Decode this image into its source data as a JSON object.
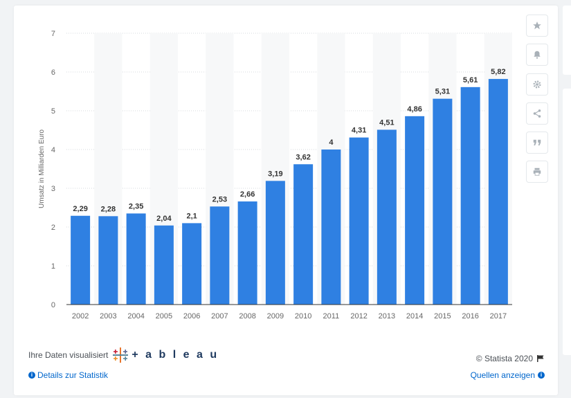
{
  "chart_data": {
    "type": "bar",
    "categories": [
      "2002",
      "2003",
      "2004",
      "2005",
      "2006",
      "2007",
      "2008",
      "2009",
      "2010",
      "2011",
      "2012",
      "2013",
      "2014",
      "2015",
      "2016",
      "2017"
    ],
    "values": [
      2.29,
      2.28,
      2.35,
      2.04,
      2.1,
      2.53,
      2.66,
      3.19,
      3.62,
      4,
      4.31,
      4.51,
      4.86,
      5.31,
      5.61,
      5.82
    ],
    "value_labels": [
      "2,29",
      "2,28",
      "2,35",
      "2,04",
      "2,1",
      "2,53",
      "2,66",
      "3,19",
      "3,62",
      "4",
      "4,31",
      "4,51",
      "4,86",
      "5,31",
      "5,61",
      "5,82"
    ],
    "ylabel": "Umsatz in Milliarden Euro",
    "xlabel": "",
    "ylim": [
      0,
      7
    ],
    "yticks": [
      0,
      1,
      2,
      3,
      4,
      5,
      6,
      7
    ],
    "grid": true,
    "bar_color": "#2f80e2"
  },
  "footer": {
    "visualized_by": "Ihre Daten visualisiert",
    "tableau_word": "+ a b l e a u",
    "details_link": "Details zur Statistik",
    "copyright": "© Statista 2020",
    "sources_link": "Quellen anzeigen"
  },
  "toolbar": {
    "icons": [
      "star-icon",
      "bell-icon",
      "gear-icon",
      "share-icon",
      "quote-icon",
      "print-icon"
    ]
  }
}
